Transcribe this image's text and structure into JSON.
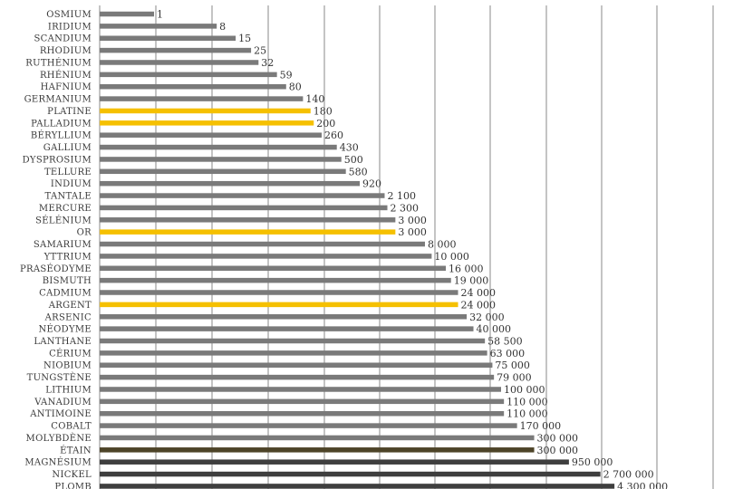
{
  "chart_data": {
    "type": "bar",
    "orientation": "horizontal",
    "scale": "log",
    "grid": true,
    "colors": {
      "default": "#7a7a7a",
      "highlight": "#f5c000",
      "dark": "#3e3e3e",
      "bronze": "#4d4428"
    },
    "bars": [
      {
        "label": "OSMIUM",
        "value_text": "1",
        "value": 1,
        "color": "default"
      },
      {
        "label": "IRIDIUM",
        "value_text": "8",
        "value": 8,
        "color": "default"
      },
      {
        "label": "SCANDIUM",
        "value_text": "15",
        "value": 15,
        "color": "default"
      },
      {
        "label": "RHODIUM",
        "value_text": "25",
        "value": 25,
        "color": "default"
      },
      {
        "label": "RUTHÉNIUM",
        "value_text": "32",
        "value": 32,
        "color": "default"
      },
      {
        "label": "RHÉNIUM",
        "value_text": "59",
        "value": 59,
        "color": "default"
      },
      {
        "label": "HAFNIUM",
        "value_text": "80",
        "value": 80,
        "color": "default"
      },
      {
        "label": "GERMANIUM",
        "value_text": "140",
        "value": 140,
        "color": "default"
      },
      {
        "label": "PLATINE",
        "value_text": "180",
        "value": 180,
        "color": "highlight"
      },
      {
        "label": "PALLADIUM",
        "value_text": "200",
        "value": 200,
        "color": "highlight"
      },
      {
        "label": "BÉRYLLIUM",
        "value_text": "260",
        "value": 260,
        "color": "default"
      },
      {
        "label": "GALLIUM",
        "value_text": "430",
        "value": 430,
        "color": "default"
      },
      {
        "label": "DYSPROSIUM",
        "value_text": "500",
        "value": 500,
        "color": "default"
      },
      {
        "label": "TELLURE",
        "value_text": "580",
        "value": 580,
        "color": "default"
      },
      {
        "label": "INDIUM",
        "value_text": "920",
        "value": 920,
        "color": "default"
      },
      {
        "label": "TANTALE",
        "value_text": "2 100",
        "value": 2100,
        "color": "default"
      },
      {
        "label": "MERCURE",
        "value_text": "2 300",
        "value": 2300,
        "color": "default"
      },
      {
        "label": "SÉLÉNIUM",
        "value_text": "3 000",
        "value": 3000,
        "color": "default"
      },
      {
        "label": "OR",
        "value_text": "3 000",
        "value": 3000,
        "color": "highlight"
      },
      {
        "label": "SAMARIUM",
        "value_text": "8 000",
        "value": 8000,
        "color": "default"
      },
      {
        "label": "YTTRIUM",
        "value_text": "10 000",
        "value": 10000,
        "color": "default"
      },
      {
        "label": "PRASÉODYME",
        "value_text": "16 000",
        "value": 16000,
        "color": "default"
      },
      {
        "label": "BISMUTH",
        "value_text": "19 000",
        "value": 19000,
        "color": "default"
      },
      {
        "label": "CADMIUM",
        "value_text": "24 000",
        "value": 24000,
        "color": "default"
      },
      {
        "label": "ARGENT",
        "value_text": "24 000",
        "value": 24000,
        "color": "highlight"
      },
      {
        "label": "ARSENIC",
        "value_text": "32 000",
        "value": 32000,
        "color": "default"
      },
      {
        "label": "NÉODYME",
        "value_text": "40 000",
        "value": 40000,
        "color": "default"
      },
      {
        "label": "LANTHANE",
        "value_text": "58 500",
        "value": 58500,
        "color": "default"
      },
      {
        "label": "CÉRIUM",
        "value_text": "63 000",
        "value": 63000,
        "color": "default"
      },
      {
        "label": "NIOBIUM",
        "value_text": "75 000",
        "value": 75000,
        "color": "default"
      },
      {
        "label": "TUNGSTÈNE",
        "value_text": "79 000",
        "value": 79000,
        "color": "default"
      },
      {
        "label": "LITHIUM",
        "value_text": "100 000",
        "value": 100000,
        "color": "default"
      },
      {
        "label": "VANADIUM",
        "value_text": "110 000",
        "value": 110000,
        "color": "default"
      },
      {
        "label": "ANTIMOINE",
        "value_text": "110 000",
        "value": 110000,
        "color": "default"
      },
      {
        "label": "COBALT",
        "value_text": "170 000",
        "value": 170000,
        "color": "default"
      },
      {
        "label": "MOLYBDÈNE",
        "value_text": "300 000",
        "value": 300000,
        "color": "default"
      },
      {
        "label": "ÉTAIN",
        "value_text": "300 000",
        "value": 300000,
        "color": "bronze"
      },
      {
        "label": "MAGNÉSIUM",
        "value_text": "950 000",
        "value": 950000,
        "color": "dark"
      },
      {
        "label": "NICKEL",
        "value_text": "2 700 000",
        "value": 2700000,
        "color": "dark"
      },
      {
        "label": "PLOMB",
        "value_text": "4 300 000",
        "value": 4300000,
        "color": "dark"
      }
    ]
  }
}
